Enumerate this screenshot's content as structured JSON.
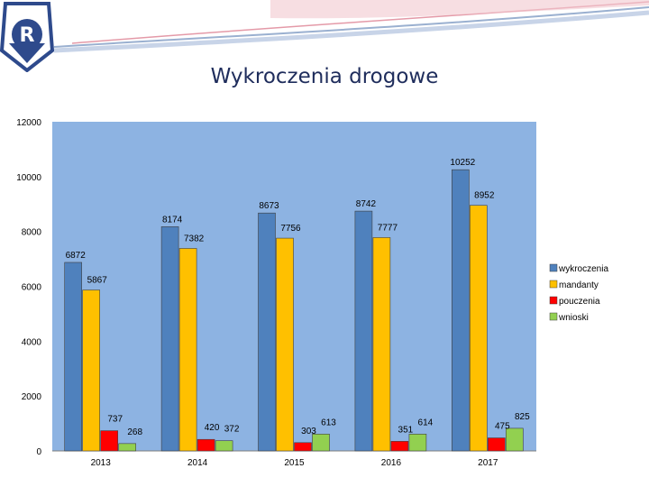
{
  "slide": {
    "title": "Wykroczenia drogowe",
    "logo_letter": "R"
  },
  "colors": {
    "plot_background": "#8db3e2",
    "title_color": "#1f2d5c",
    "logo_border": "#2e4a8c"
  },
  "chart_data": {
    "type": "bar",
    "title": "",
    "xlabel": "",
    "ylabel": "",
    "categories": [
      "2013",
      "2014",
      "2015",
      "2016",
      "2017"
    ],
    "ylim": [
      0,
      12000
    ],
    "yticks": [
      0,
      2000,
      4000,
      6000,
      8000,
      10000,
      12000
    ],
    "grid": false,
    "legend_position": "right",
    "series": [
      {
        "name": "wykroczenia",
        "color": "#4f81bd",
        "values": [
          6872,
          8174,
          8673,
          8742,
          10252
        ],
        "labels": [
          "6872",
          "8174",
          "8673",
          "8742",
          "10252"
        ]
      },
      {
        "name": "mandanty",
        "color": "#ffc000",
        "values": [
          5867,
          7382,
          7756,
          7777,
          8952
        ],
        "labels": [
          "5867",
          "7382",
          "7756",
          "7777",
          "8952"
        ]
      },
      {
        "name": "pouczenia",
        "color": "#ff0000",
        "values": [
          737,
          420,
          303,
          351,
          475
        ],
        "labels": [
          "737",
          "420",
          "303",
          "351",
          "475"
        ]
      },
      {
        "name": "wnioski",
        "color": "#92d050",
        "values": [
          268,
          372,
          613,
          614,
          825
        ],
        "labels": [
          "268",
          "372",
          "613",
          "614",
          "825"
        ]
      }
    ]
  }
}
